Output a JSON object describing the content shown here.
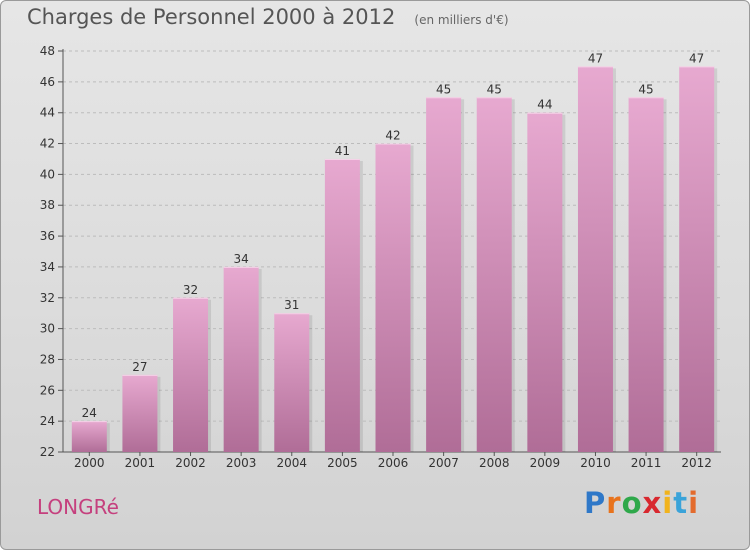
{
  "title": "Charges de Personnel 2000 à 2012",
  "subtitle": "(en milliers d'€)",
  "location": "LONGRé",
  "brand": {
    "name": "Proxiti",
    "letters": [
      "P",
      "r",
      "o",
      "x",
      "i",
      "t",
      "i"
    ],
    "colors": [
      "#2f78c8",
      "#e8731d",
      "#2ea84a",
      "#d8282f",
      "#f1b31c",
      "#3aa3d9",
      "#e36b2d"
    ]
  },
  "colors": {
    "bar_light": "#e7a9d0",
    "bar_dark": "#b06d97",
    "location": "#c5407e"
  },
  "chart_data": {
    "type": "bar",
    "categories": [
      "2000",
      "2001",
      "2002",
      "2003",
      "2004",
      "2005",
      "2006",
      "2007",
      "2008",
      "2009",
      "2010",
      "2011",
      "2012"
    ],
    "values": [
      24,
      27,
      32,
      34,
      31,
      41,
      42,
      45,
      45,
      44,
      47,
      45,
      47
    ],
    "data_labels": [
      "24",
      "27",
      "32",
      "34",
      "31",
      "41",
      "42",
      "45",
      "45",
      "44",
      "47",
      "45",
      "47"
    ],
    "ylim": [
      22,
      48
    ],
    "yticks": [
      "22",
      "24",
      "26",
      "28",
      "30",
      "32",
      "34",
      "36",
      "38",
      "40",
      "42",
      "44",
      "46",
      "48"
    ],
    "grid": true,
    "xlabel": "",
    "ylabel": "",
    "legend": "none"
  }
}
